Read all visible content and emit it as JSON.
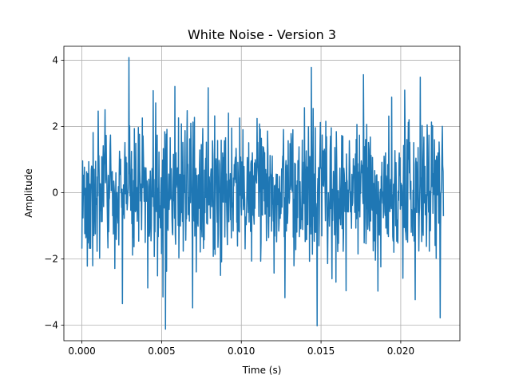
{
  "chart_data": {
    "type": "line",
    "title": "White Noise - Version 3",
    "xlabel": "Time (s)",
    "ylabel": "Amplitude",
    "xlim": [
      -0.00113,
      0.02371
    ],
    "ylim": [
      -4.47,
      4.42
    ],
    "xticks": [
      0.0,
      0.005,
      0.01,
      0.015,
      0.02
    ],
    "xtick_labels": [
      "0.000",
      "0.005",
      "0.010",
      "0.015",
      "0.020"
    ],
    "yticks": [
      -4,
      -2,
      0,
      2,
      4
    ],
    "ytick_labels": [
      "−4",
      "−2",
      "0",
      "2",
      "4"
    ],
    "grid": true,
    "legend": "none",
    "series_color": "#1f77b4",
    "sample_interval": 2.27e-05,
    "num_points": 1000,
    "y_range": [
      -4.12,
      4.08
    ],
    "notable_points": [
      {
        "x": 0.00295,
        "y": 4.08
      },
      {
        "x": 0.00525,
        "y": -4.12
      },
      {
        "x": 0.01475,
        "y": -4.02
      },
      {
        "x": 0.00694,
        "y": -3.48
      },
      {
        "x": 0.00254,
        "y": -3.35
      },
      {
        "x": 0.02248,
        "y": -3.78
      }
    ]
  }
}
